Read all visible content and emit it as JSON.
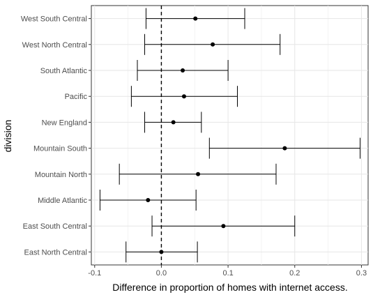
{
  "chart_data": {
    "type": "errorbar",
    "xlabel": "Difference in proportion of homes with internet access.",
    "ylabel": "division",
    "xlim": [
      -0.105,
      0.31
    ],
    "xticks": [
      -0.1,
      0.0,
      0.1,
      0.2,
      0.3
    ],
    "xtick_labels": [
      "-0.1",
      "0.0",
      "0.1",
      "0.2",
      "0.3"
    ],
    "grid": true,
    "reference_line": {
      "x": 0,
      "style": "dashed"
    },
    "categories": [
      "West South Central",
      "West North Central",
      "South Atlantic",
      "Pacific",
      "New England",
      "Mountain South",
      "Mountain North",
      "Middle Atlantic",
      "East South Central",
      "East North Central"
    ],
    "estimate": [
      0.051,
      0.077,
      0.032,
      0.034,
      0.018,
      0.185,
      0.055,
      -0.02,
      0.093,
      0.0
    ],
    "lower": [
      -0.023,
      -0.025,
      -0.036,
      -0.045,
      -0.025,
      0.072,
      -0.063,
      -0.092,
      -0.014,
      -0.053
    ],
    "upper": [
      0.125,
      0.178,
      0.1,
      0.114,
      0.06,
      0.298,
      0.172,
      0.052,
      0.2,
      0.054
    ]
  }
}
